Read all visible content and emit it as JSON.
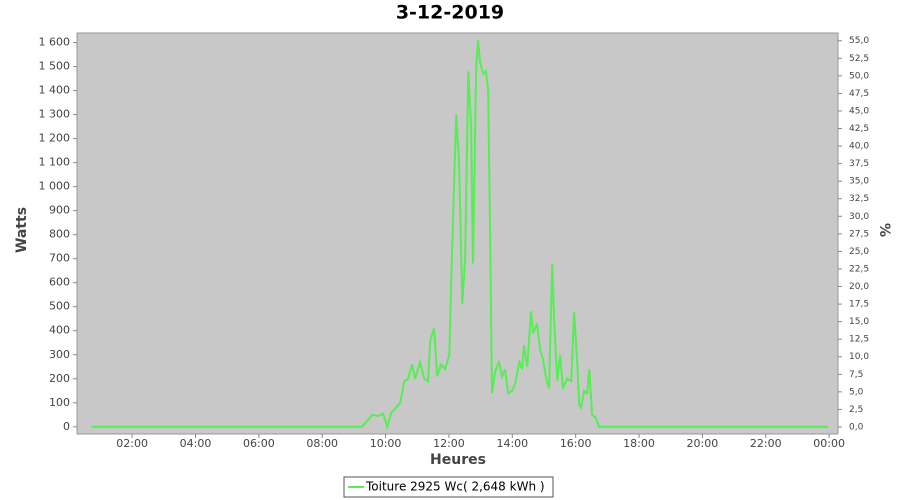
{
  "chart_data": {
    "type": "line",
    "title": "3-12-2019",
    "y_label": "Watts",
    "x_label": "Heures",
    "y2_label": "%",
    "xlim": [
      0.26,
      24.28
    ],
    "xticks": [
      {
        "value": 2,
        "label": "02:00"
      },
      {
        "value": 4,
        "label": "04:00"
      },
      {
        "value": 6,
        "label": "06:00"
      },
      {
        "value": 8,
        "label": "08:00"
      },
      {
        "value": 10,
        "label": "10:00"
      },
      {
        "value": 12,
        "label": "12:00"
      },
      {
        "value": 14,
        "label": "14:00"
      },
      {
        "value": 16,
        "label": "16:00"
      },
      {
        "value": 18,
        "label": "18:00"
      },
      {
        "value": 20,
        "label": "20:00"
      },
      {
        "value": 22,
        "label": "22:00"
      },
      {
        "value": 24,
        "label": "00:00"
      }
    ],
    "ylim": [
      -30,
      1640
    ],
    "yticks": [
      0,
      100,
      200,
      300,
      400,
      500,
      600,
      700,
      800,
      900,
      {
        "value": 1000,
        "label": "1 000"
      },
      {
        "value": 1100,
        "label": "1 100"
      },
      {
        "value": 1200,
        "label": "1 200"
      },
      {
        "value": 1300,
        "label": "1 300"
      },
      {
        "value": 1400,
        "label": "1 400"
      },
      {
        "value": 1500,
        "label": "1 500"
      },
      {
        "value": 1600,
        "label": "1 600"
      }
    ],
    "y2lim": [
      -1.0,
      56.1
    ],
    "y2ticks": [
      {
        "value": 0,
        "label": "0,0"
      },
      {
        "value": 2.5,
        "label": "2,5"
      },
      {
        "value": 5,
        "label": "5,0"
      },
      {
        "value": 7.5,
        "label": "7,5"
      },
      {
        "value": 10,
        "label": "10,0"
      },
      {
        "value": 12.5,
        "label": "12,5"
      },
      {
        "value": 15,
        "label": "15,0"
      },
      {
        "value": 17.5,
        "label": "17,5"
      },
      {
        "value": 20,
        "label": "20,0"
      },
      {
        "value": 22.5,
        "label": "22,5"
      },
      {
        "value": 25,
        "label": "25,0"
      },
      {
        "value": 27.5,
        "label": "27,5"
      },
      {
        "value": 30,
        "label": "30,0"
      },
      {
        "value": 32.5,
        "label": "32,5"
      },
      {
        "value": 35,
        "label": "35,0"
      },
      {
        "value": 37.5,
        "label": "37,5"
      },
      {
        "value": 40,
        "label": "40,0"
      },
      {
        "value": 42.5,
        "label": "42,5"
      },
      {
        "value": 45,
        "label": "45,0"
      },
      {
        "value": 47.5,
        "label": "47,5"
      },
      {
        "value": 50,
        "label": "50,0"
      },
      {
        "value": 52.5,
        "label": "52,5"
      },
      {
        "value": 55,
        "label": "55,0"
      }
    ],
    "x": [
      0.71,
      9.26,
      9.58,
      9.77,
      9.92,
      10.05,
      10.18,
      10.3,
      10.46,
      10.59,
      10.71,
      10.84,
      10.93,
      11.09,
      11.22,
      11.34,
      11.41,
      11.53,
      11.63,
      11.75,
      11.88,
      12.01,
      12.07,
      12.16,
      12.23,
      12.32,
      12.42,
      12.51,
      12.61,
      12.7,
      12.76,
      12.86,
      12.92,
      12.98,
      13.08,
      13.17,
      13.24,
      13.3,
      13.36,
      13.46,
      13.58,
      13.68,
      13.77,
      13.87,
      13.99,
      14.09,
      14.22,
      14.31,
      14.37,
      14.47,
      14.59,
      14.66,
      14.78,
      14.88,
      14.97,
      15.07,
      15.16,
      15.26,
      15.32,
      15.42,
      15.51,
      15.6,
      15.73,
      15.86,
      15.95,
      16.05,
      16.11,
      16.17,
      16.27,
      16.36,
      16.43,
      16.52,
      16.62,
      16.74,
      23.97
    ],
    "series": [
      {
        "name": "Toiture 2925 Wc( 2,648 kWh )",
        "color": "#55ee55",
        "values": [
          0,
          0,
          50,
          45,
          55,
          0,
          60,
          75,
          100,
          190,
          200,
          260,
          200,
          270,
          200,
          190,
          360,
          410,
          210,
          260,
          240,
          300,
          600,
          1000,
          1300,
          1100,
          510,
          700,
          1480,
          1250,
          680,
          1500,
          1610,
          1520,
          1470,
          1480,
          1400,
          800,
          140,
          230,
          270,
          210,
          240,
          140,
          150,
          180,
          270,
          240,
          340,
          250,
          480,
          390,
          430,
          320,
          280,
          200,
          160,
          680,
          450,
          190,
          300,
          160,
          200,
          190,
          480,
          260,
          90,
          80,
          150,
          140,
          240,
          50,
          40,
          0,
          0
        ]
      }
    ]
  }
}
